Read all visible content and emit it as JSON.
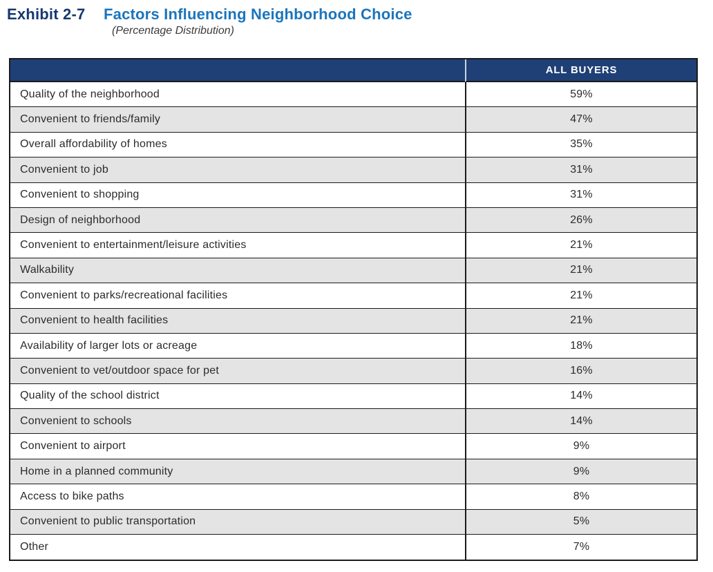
{
  "header": {
    "exhibit_label": "Exhibit 2-7",
    "title": "Factors Influencing Neighborhood Choice",
    "subtitle": "(Percentage Distribution)"
  },
  "colors": {
    "header_bg": "#1f4076",
    "header_text": "#ffffff",
    "header_divider": "#c9d5e8",
    "exhibit_label_navy": "#16386e",
    "title_blue": "#1b75bc",
    "row_alt_bg": "#e4e4e4",
    "row_bg": "#ffffff",
    "border": "#1a1a1a",
    "body_text": "#2b2b2b"
  },
  "table": {
    "columns": [
      "",
      "ALL BUYERS"
    ],
    "rows": [
      {
        "label": "Quality of the neighborhood",
        "value": "59%"
      },
      {
        "label": "Convenient to friends/family",
        "value": "47%"
      },
      {
        "label": "Overall affordability of homes",
        "value": "35%"
      },
      {
        "label": "Convenient to job",
        "value": "31%"
      },
      {
        "label": "Convenient to shopping",
        "value": "31%"
      },
      {
        "label": "Design of neighborhood",
        "value": "26%"
      },
      {
        "label": "Convenient to entertainment/leisure activities",
        "value": "21%"
      },
      {
        "label": "Walkability",
        "value": "21%"
      },
      {
        "label": "Convenient to parks/recreational facilities",
        "value": "21%"
      },
      {
        "label": "Convenient to health facilities",
        "value": "21%"
      },
      {
        "label": "Availability of larger lots or acreage",
        "value": "18%"
      },
      {
        "label": "Convenient to vet/outdoor space for pet",
        "value": "16%"
      },
      {
        "label": "Quality of the school district",
        "value": "14%"
      },
      {
        "label": "Convenient to schools",
        "value": "14%"
      },
      {
        "label": "Convenient to airport",
        "value": "9%"
      },
      {
        "label": "Home in a planned community",
        "value": "9%"
      },
      {
        "label": "Access to bike paths",
        "value": "8%"
      },
      {
        "label": "Convenient to public transportation",
        "value": "5%"
      },
      {
        "label": "Other",
        "value": "7%"
      }
    ]
  }
}
